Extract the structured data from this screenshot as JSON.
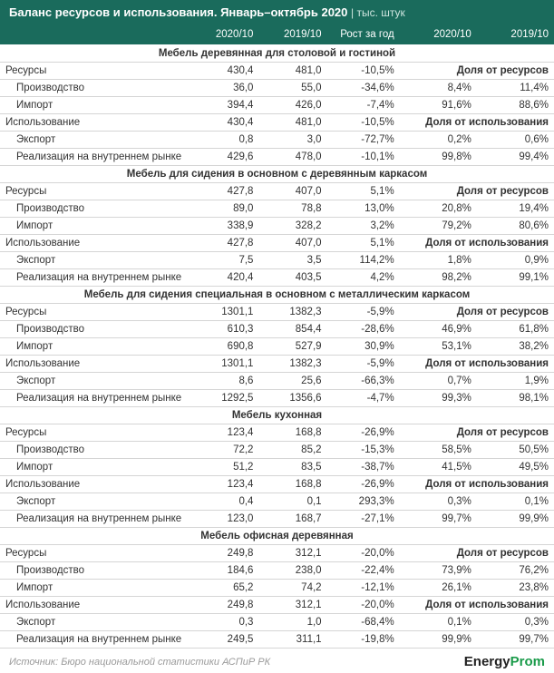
{
  "title": "Баланс ресурсов и использования. Январь–октябрь 2020",
  "units": "тыс. штук",
  "columns": [
    "",
    "2020/10",
    "2019/10",
    "Рост за год",
    "2020/10",
    "2019/10"
  ],
  "row_labels": {
    "resources": "Ресурсы",
    "production": "Производство",
    "import": "Импорт",
    "usage": "Использование",
    "export": "Экспорт",
    "domestic": "Реализация на внутреннем рынке"
  },
  "share_labels": {
    "of_resources": "Доля от ресурсов",
    "of_usage": "Доля от использования"
  },
  "sections": [
    {
      "title": "Мебель деревянная для столовой и гостиной",
      "rows": {
        "resources": [
          "430,4",
          "481,0",
          "-10,5%"
        ],
        "production": [
          "36,0",
          "55,0",
          "-34,6%",
          "8,4%",
          "11,4%"
        ],
        "import": [
          "394,4",
          "426,0",
          "-7,4%",
          "91,6%",
          "88,6%"
        ],
        "usage": [
          "430,4",
          "481,0",
          "-10,5%"
        ],
        "export": [
          "0,8",
          "3,0",
          "-72,7%",
          "0,2%",
          "0,6%"
        ],
        "domestic": [
          "429,6",
          "478,0",
          "-10,1%",
          "99,8%",
          "99,4%"
        ]
      }
    },
    {
      "title": "Мебель для сидения в основном с деревянным каркасом",
      "rows": {
        "resources": [
          "427,8",
          "407,0",
          "5,1%"
        ],
        "production": [
          "89,0",
          "78,8",
          "13,0%",
          "20,8%",
          "19,4%"
        ],
        "import": [
          "338,9",
          "328,2",
          "3,2%",
          "79,2%",
          "80,6%"
        ],
        "usage": [
          "427,8",
          "407,0",
          "5,1%"
        ],
        "export": [
          "7,5",
          "3,5",
          "114,2%",
          "1,8%",
          "0,9%"
        ],
        "domestic": [
          "420,4",
          "403,5",
          "4,2%",
          "98,2%",
          "99,1%"
        ]
      }
    },
    {
      "title": "Мебель для сидения специальная в основном с металлическим каркасом",
      "rows": {
        "resources": [
          "1301,1",
          "1382,3",
          "-5,9%"
        ],
        "production": [
          "610,3",
          "854,4",
          "-28,6%",
          "46,9%",
          "61,8%"
        ],
        "import": [
          "690,8",
          "527,9",
          "30,9%",
          "53,1%",
          "38,2%"
        ],
        "usage": [
          "1301,1",
          "1382,3",
          "-5,9%"
        ],
        "export": [
          "8,6",
          "25,6",
          "-66,3%",
          "0,7%",
          "1,9%"
        ],
        "domestic": [
          "1292,5",
          "1356,6",
          "-4,7%",
          "99,3%",
          "98,1%"
        ]
      }
    },
    {
      "title": "Мебель кухонная",
      "rows": {
        "resources": [
          "123,4",
          "168,8",
          "-26,9%"
        ],
        "production": [
          "72,2",
          "85,2",
          "-15,3%",
          "58,5%",
          "50,5%"
        ],
        "import": [
          "51,2",
          "83,5",
          "-38,7%",
          "41,5%",
          "49,5%"
        ],
        "usage": [
          "123,4",
          "168,8",
          "-26,9%"
        ],
        "export": [
          "0,4",
          "0,1",
          "293,3%",
          "0,3%",
          "0,1%"
        ],
        "domestic": [
          "123,0",
          "168,7",
          "-27,1%",
          "99,7%",
          "99,9%"
        ]
      }
    },
    {
      "title": "Мебель офисная деревянная",
      "rows": {
        "resources": [
          "249,8",
          "312,1",
          "-20,0%"
        ],
        "production": [
          "184,6",
          "238,0",
          "-22,4%",
          "73,9%",
          "76,2%"
        ],
        "import": [
          "65,2",
          "74,2",
          "-12,1%",
          "26,1%",
          "23,8%"
        ],
        "usage": [
          "249,8",
          "312,1",
          "-20,0%"
        ],
        "export": [
          "0,3",
          "1,0",
          "-68,4%",
          "0,1%",
          "0,3%"
        ],
        "domestic": [
          "249,5",
          "311,1",
          "-19,8%",
          "99,9%",
          "99,7%"
        ]
      }
    }
  ],
  "source": "Источник: Бюро национальной статистики АСПиР РК",
  "logo": {
    "part1": "Energy",
    "part2": "Prom"
  },
  "colors": {
    "header_bg": "#1a6b5c",
    "header_text": "#ffffff",
    "border": "#d5d5d5",
    "text": "#333333",
    "source_text": "#9a9a9a",
    "logo_green": "#1a9b4a"
  }
}
